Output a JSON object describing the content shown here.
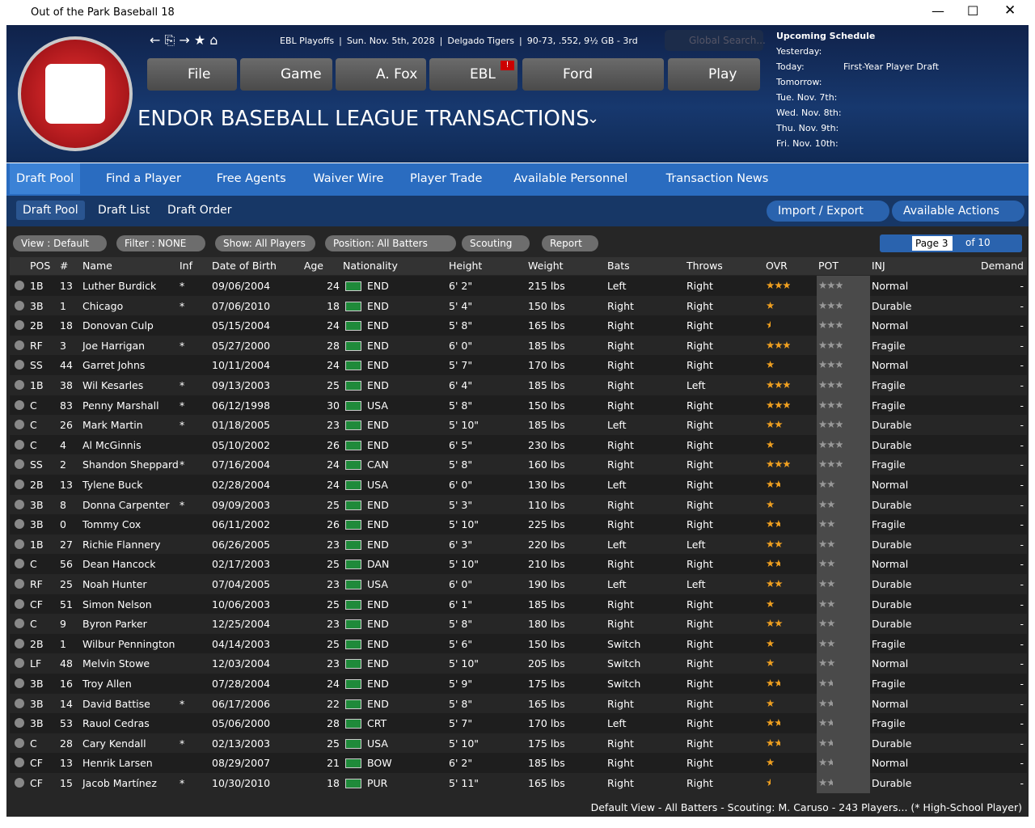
{
  "window": {
    "title": "Out of the Park Baseball 18"
  },
  "header": {
    "breadcrumb": [
      "EBL Playoffs",
      "Sun. Nov. 5th, 2028",
      "Delgado Tigers",
      "90-73, .552, 9½ GB - 3rd"
    ],
    "search_placeholder": "Global Search...",
    "menu": [
      "File",
      "Game",
      "A. Fox",
      "EBL",
      "Ford",
      "Play"
    ],
    "badge": "!",
    "page_title": "ENDOR BASEBALL LEAGUE TRANSACTIONS"
  },
  "schedule": {
    "title": "Upcoming Schedule",
    "rows": [
      [
        "Yesterday:",
        null
      ],
      [
        "Today:",
        "First-Year Player Draft"
      ],
      [
        "Tomorrow:",
        null
      ],
      [
        "Tue. Nov. 7th:",
        null
      ],
      [
        "Wed. Nov. 8th:",
        null
      ],
      [
        "Thu. Nov. 9th:",
        null
      ],
      [
        "Fri. Nov. 10th:",
        null
      ]
    ]
  },
  "tabs": [
    "Draft Pool",
    "Find a Player",
    "Free Agents",
    "Waiver Wire",
    "Player Trade",
    "Available Personnel",
    "Transaction News"
  ],
  "subtabs": [
    "Draft Pool",
    "Draft List",
    "Draft Order"
  ],
  "actions": [
    "Import / Export",
    "Available Actions"
  ],
  "filters": [
    "View : Default",
    "Filter : NONE",
    "Show: All Players",
    "Position: All Batters",
    "Scouting",
    "Report"
  ],
  "pager": {
    "page": "Page 3",
    "of": "of 10"
  },
  "table": {
    "columns": [
      "POS",
      "#",
      "Name",
      "Inf",
      "Date of Birth",
      "Age",
      "Nationality",
      "Height",
      "Weight",
      "Bats",
      "Throws",
      "OVR",
      "POT",
      "INJ",
      "Demand"
    ],
    "rows": [
      [
        "1B",
        13,
        "Luther Burdick",
        "*",
        "09/06/2004",
        24,
        "END",
        "6' 2\"",
        "215 lbs",
        "Left",
        "Right",
        2.5,
        2.5,
        "Normal",
        "-"
      ],
      [
        "3B",
        1,
        "Chicago",
        "*",
        "07/06/2010",
        18,
        "END",
        "5' 4\"",
        "150 lbs",
        "Right",
        "Right",
        1,
        2.5,
        "Durable",
        "-"
      ],
      [
        "2B",
        18,
        "Donovan Culp",
        null,
        "05/15/2004",
        24,
        "END",
        "5' 8\"",
        "165 lbs",
        "Right",
        "Right",
        0.5,
        2.5,
        "Normal",
        "-"
      ],
      [
        "RF",
        3,
        "Joe Harrigan",
        "*",
        "05/27/2000",
        28,
        "END",
        "6' 0\"",
        "185 lbs",
        "Right",
        "Right",
        2.5,
        2.5,
        "Fragile",
        "-"
      ],
      [
        "SS",
        44,
        "Garret Johns",
        null,
        "10/11/2004",
        24,
        "END",
        "5' 7\"",
        "170 lbs",
        "Right",
        "Right",
        1,
        2.5,
        "Normal",
        "-"
      ],
      [
        "1B",
        38,
        "Wil Kesarles",
        "*",
        "09/13/2003",
        25,
        "END",
        "6' 4\"",
        "185 lbs",
        "Right",
        "Left",
        2.5,
        2.5,
        "Fragile",
        "-"
      ],
      [
        "C",
        83,
        "Penny Marshall",
        "*",
        "06/12/1998",
        30,
        "USA",
        "5' 8\"",
        "150 lbs",
        "Right",
        "Right",
        2.5,
        2.5,
        "Fragile",
        "-"
      ],
      [
        "C",
        26,
        "Mark Martin",
        "*",
        "01/18/2005",
        23,
        "END",
        "5' 10\"",
        "185 lbs",
        "Left",
        "Right",
        2,
        2.5,
        "Durable",
        "-"
      ],
      [
        "C",
        4,
        "Al McGinnis",
        null,
        "05/10/2002",
        26,
        "END",
        "6' 5\"",
        "230 lbs",
        "Right",
        "Right",
        1,
        2.5,
        "Durable",
        "-"
      ],
      [
        "SS",
        2,
        "Shandon Sheppard",
        "*",
        "07/16/2004",
        24,
        "CAN",
        "5' 8\"",
        "160 lbs",
        "Right",
        "Right",
        2.5,
        2.5,
        "Fragile",
        "-"
      ],
      [
        "2B",
        13,
        "Tylene Buck",
        null,
        "02/28/2004",
        24,
        "USA",
        "6' 0\"",
        "130 lbs",
        "Left",
        "Right",
        1.5,
        2,
        "Normal",
        "-"
      ],
      [
        "3B",
        8,
        "Donna Carpenter",
        "*",
        "09/09/2003",
        25,
        "END",
        "5' 3\"",
        "110 lbs",
        "Right",
        "Right",
        1,
        2,
        "Durable",
        "-"
      ],
      [
        "3B",
        0,
        "Tommy Cox",
        null,
        "06/11/2002",
        26,
        "END",
        "5' 10\"",
        "225 lbs",
        "Right",
        "Right",
        1.5,
        2,
        "Fragile",
        "-"
      ],
      [
        "1B",
        27,
        "Richie Flannery",
        null,
        "06/26/2005",
        23,
        "END",
        "6' 3\"",
        "220 lbs",
        "Left",
        "Left",
        2,
        2,
        "Durable",
        "-"
      ],
      [
        "C",
        56,
        "Dean Hancock",
        null,
        "02/17/2003",
        25,
        "DAN",
        "5' 10\"",
        "210 lbs",
        "Right",
        "Right",
        1.5,
        2,
        "Normal",
        "-"
      ],
      [
        "RF",
        25,
        "Noah Hunter",
        null,
        "07/04/2005",
        23,
        "USA",
        "6' 0\"",
        "190 lbs",
        "Left",
        "Left",
        2,
        2,
        "Durable",
        "-"
      ],
      [
        "CF",
        51,
        "Simon Nelson",
        null,
        "10/06/2003",
        25,
        "END",
        "6' 1\"",
        "185 lbs",
        "Right",
        "Right",
        1,
        2,
        "Durable",
        "-"
      ],
      [
        "C",
        9,
        "Byron Parker",
        null,
        "12/25/2004",
        23,
        "END",
        "5' 8\"",
        "180 lbs",
        "Right",
        "Right",
        2,
        2,
        "Durable",
        "-"
      ],
      [
        "2B",
        1,
        "Wilbur Pennington",
        null,
        "04/14/2003",
        25,
        "END",
        "5' 6\"",
        "150 lbs",
        "Switch",
        "Right",
        1,
        2,
        "Fragile",
        "-"
      ],
      [
        "LF",
        48,
        "Melvin Stowe",
        null,
        "12/03/2004",
        23,
        "END",
        "5' 10\"",
        "205 lbs",
        "Switch",
        "Right",
        1,
        2,
        "Normal",
        "-"
      ],
      [
        "3B",
        16,
        "Troy Allen",
        null,
        "07/28/2004",
        24,
        "END",
        "5' 9\"",
        "175 lbs",
        "Switch",
        "Right",
        1.5,
        1.5,
        "Fragile",
        "-"
      ],
      [
        "3B",
        14,
        "David Battise",
        "*",
        "06/17/2006",
        22,
        "END",
        "5' 8\"",
        "165 lbs",
        "Right",
        "Right",
        1,
        1.5,
        "Normal",
        "-"
      ],
      [
        "3B",
        53,
        "Rauol Cedras",
        null,
        "05/06/2000",
        28,
        "CRT",
        "5' 7\"",
        "170 lbs",
        "Left",
        "Right",
        1.5,
        1.5,
        "Fragile",
        "-"
      ],
      [
        "C",
        28,
        "Cary Kendall",
        "*",
        "02/13/2003",
        25,
        "USA",
        "5' 10\"",
        "175 lbs",
        "Right",
        "Right",
        1.5,
        1.5,
        "Durable",
        "-"
      ],
      [
        "CF",
        13,
        "Henrik Larsen",
        null,
        "08/29/2007",
        21,
        "BOW",
        "6' 2\"",
        "185 lbs",
        "Right",
        "Right",
        1,
        1.5,
        "Normal",
        "-"
      ],
      [
        "CF",
        15,
        "Jacob Martínez",
        "*",
        "10/30/2010",
        18,
        "PUR",
        "5' 11\"",
        "165 lbs",
        "Right",
        "Right",
        0.5,
        1.5,
        "Durable",
        "-"
      ]
    ]
  },
  "footer": "Default View - All Batters - Scouting: M. Caruso - 243 Players... (* High-School Player)"
}
